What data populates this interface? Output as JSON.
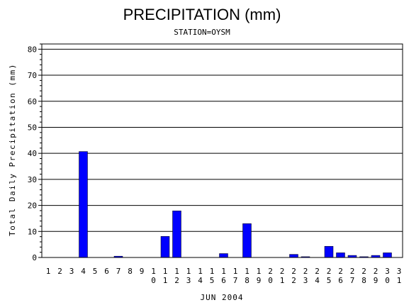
{
  "chart_data": {
    "type": "bar",
    "title": "PRECIPITATION (mm)",
    "subtitle": "STATION=OYSM",
    "xlabel": "JUN 2004",
    "ylabel": "Total Daily Precipitation (mm)",
    "ylim": [
      0,
      82
    ],
    "yticks": [
      0,
      10,
      20,
      30,
      40,
      50,
      60,
      70,
      80
    ],
    "grid": true,
    "bar_color": "#0000ff",
    "categories": [
      "1",
      "2",
      "3",
      "4",
      "5",
      "6",
      "7",
      "8",
      "9",
      "10",
      "11",
      "12",
      "13",
      "14",
      "15",
      "16",
      "17",
      "18",
      "19",
      "20",
      "21",
      "22",
      "23",
      "24",
      "25",
      "26",
      "27",
      "28",
      "29",
      "30",
      "31"
    ],
    "values": [
      0,
      0,
      0,
      40.7,
      0,
      0,
      0.5,
      0,
      0,
      0,
      8.1,
      17.9,
      0,
      0,
      0,
      1.5,
      0,
      13.0,
      0,
      0,
      0,
      1.2,
      0.3,
      0,
      4.3,
      1.8,
      0.8,
      0.3,
      0.8,
      1.8,
      0
    ]
  }
}
